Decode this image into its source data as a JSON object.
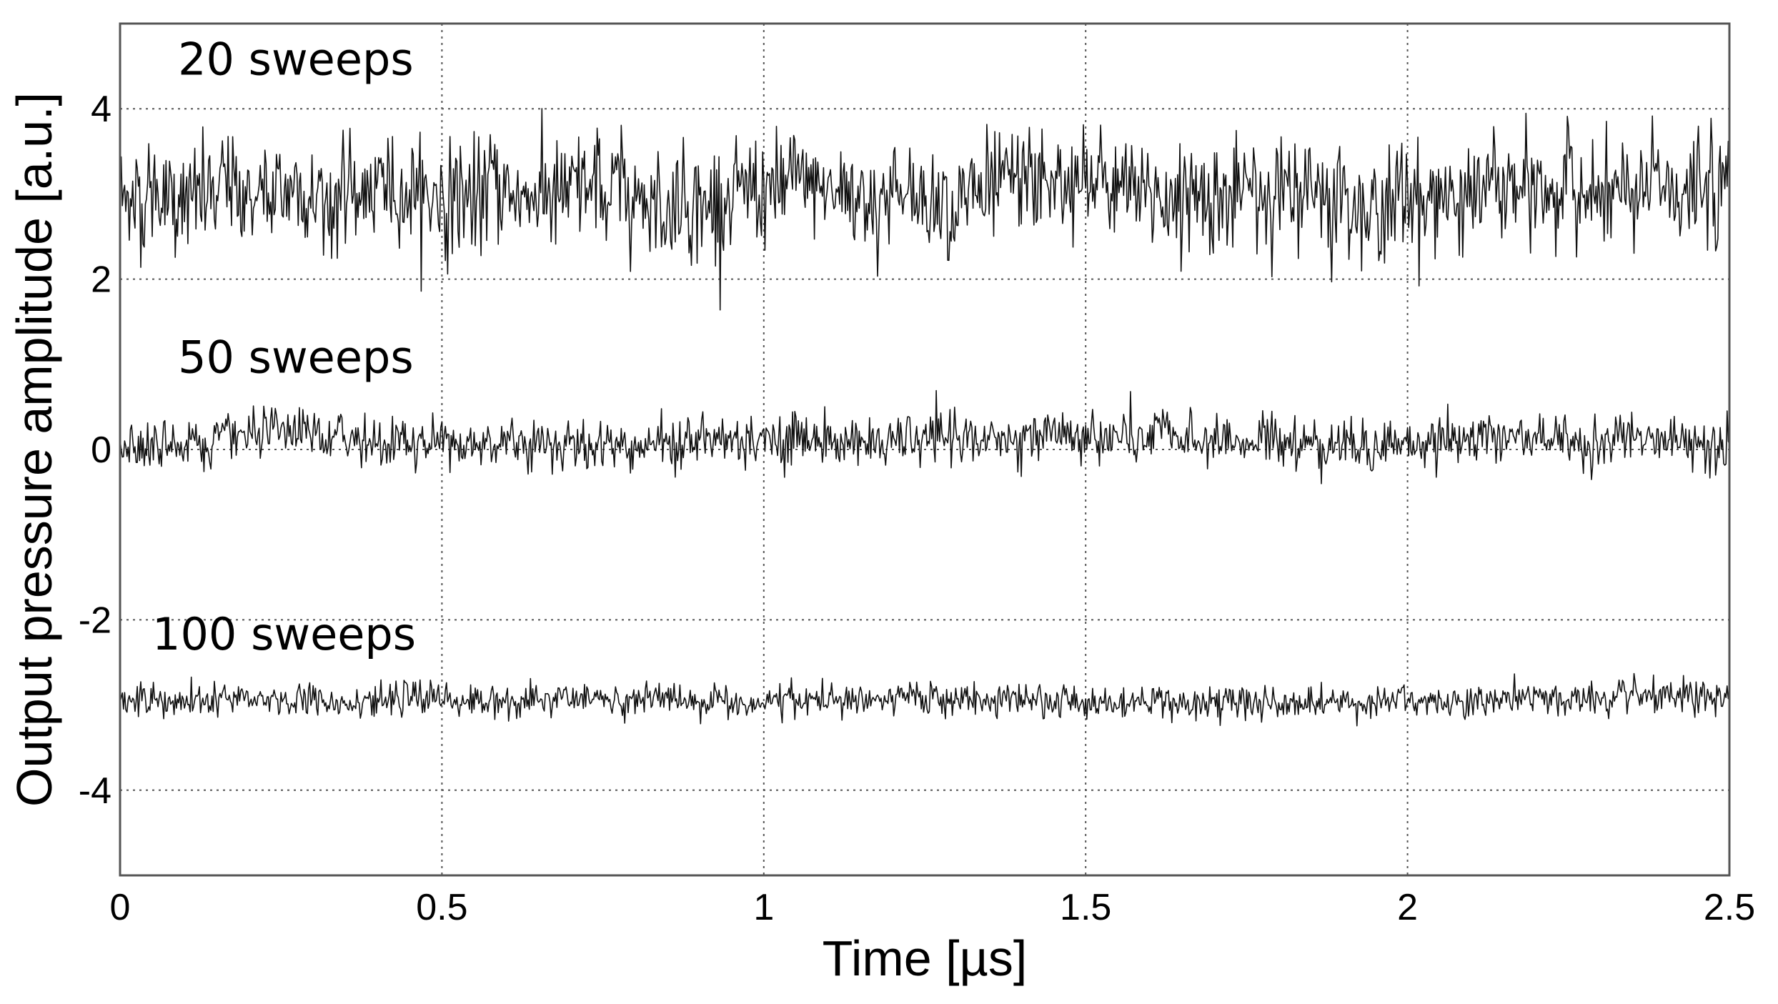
{
  "chart_data": {
    "type": "line",
    "title": "",
    "xlabel": "Time [µs]",
    "ylabel": "Output pressure amplitude [a.u.]",
    "xlim": [
      0,
      2.5
    ],
    "ylim": [
      -5,
      5
    ],
    "xticks": [
      0,
      0.5,
      1,
      1.5,
      2,
      2.5
    ],
    "xtick_labels": [
      "0",
      "0.5",
      "1",
      "1.5",
      "2",
      "2.5"
    ],
    "yticks": [
      4,
      2,
      0,
      -2,
      -4
    ],
    "ytick_labels": [
      "4",
      "2",
      "0",
      "-2",
      "-4"
    ],
    "grid": true,
    "line_color": "#111111",
    "series": [
      {
        "name": "20 sweeps",
        "offset": 3.0,
        "noise_amplitude": 0.85,
        "x_range": [
          0,
          2.5
        ]
      },
      {
        "name": "50 sweeps",
        "offset": 0.1,
        "noise_amplitude": 0.4,
        "x_range": [
          0,
          2.5
        ]
      },
      {
        "name": "100 sweeps",
        "offset": -2.95,
        "noise_amplitude": 0.25,
        "x_range": [
          0,
          2.5
        ]
      }
    ],
    "annotations": [
      {
        "text": "20 sweeps",
        "x": 0.09,
        "y": 4.4
      },
      {
        "text": "50 sweeps",
        "x": 0.09,
        "y": 0.9
      },
      {
        "text": "100 sweeps",
        "x": 0.05,
        "y": -2.35
      }
    ]
  }
}
